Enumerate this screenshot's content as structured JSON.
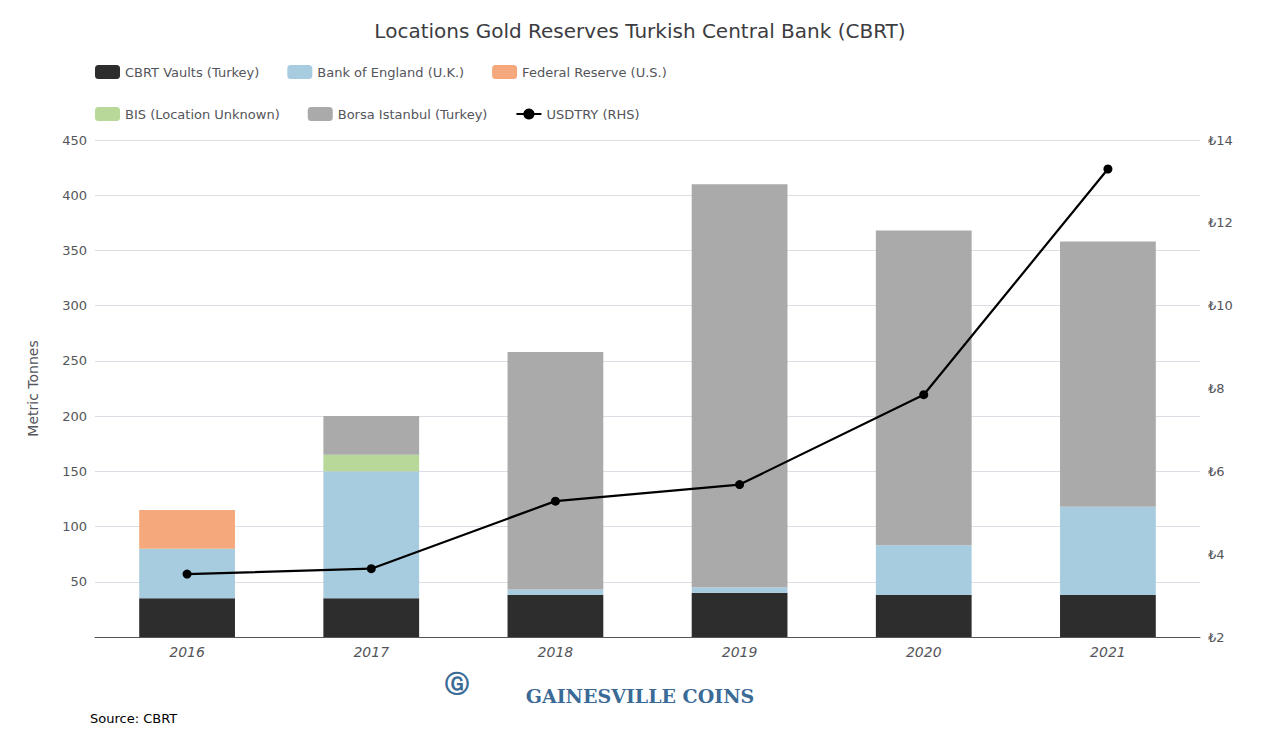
{
  "chart_data": {
    "type": "bar",
    "title": "Locations Gold Reserves Turkish Central Bank (CBRT)",
    "ylabel": "Metric Tonnes",
    "categories": [
      "2016",
      "2017",
      "2018",
      "2019",
      "2020",
      "2021"
    ],
    "stacked": true,
    "grid": true,
    "legend": "upper left",
    "series": [
      {
        "name": "CBRT Vaults (Turkey)",
        "color": "#2d2d2d",
        "values": [
          35,
          35,
          38,
          40,
          38,
          38
        ]
      },
      {
        "name": "Bank of England (U.K.)",
        "color": "#a8ccdf",
        "values": [
          45,
          115,
          5,
          5,
          45,
          80
        ]
      },
      {
        "name": "Federal Reserve (U.S.)",
        "color": "#f4a87b",
        "values": [
          35,
          0,
          0,
          0,
          0,
          0
        ]
      },
      {
        "name": "BIS (Location Unknown)",
        "color": "#b8d89a",
        "values": [
          0,
          15,
          0,
          0,
          0,
          0
        ]
      },
      {
        "name": "Borsa Istanbul (Turkey)",
        "color": "#aaaaaa",
        "values": [
          0,
          35,
          215,
          365,
          285,
          240
        ]
      },
      {
        "name": "USDTRY (RHS)",
        "type": "line",
        "axis": "y2",
        "color": "black",
        "marker": "circle",
        "values": [
          3.52,
          3.65,
          5.28,
          5.68,
          7.85,
          13.3
        ]
      }
    ],
    "ylim": [
      0,
      450
    ],
    "yticks": [
      {
        "value": 0,
        "label": ""
      },
      50,
      100,
      150,
      200,
      250,
      300,
      350,
      400,
      450
    ],
    "y2lim": [
      2,
      14
    ],
    "y2ticks": [
      {
        "value": 2,
        "label": "₺2"
      },
      {
        "value": 4,
        "label": "₺4"
      },
      {
        "value": 6,
        "label": "₺6"
      },
      {
        "value": 8,
        "label": "₺8"
      },
      {
        "value": 10,
        "label": "₺10"
      },
      {
        "value": 12,
        "label": "₺12"
      },
      {
        "value": 14,
        "label": "₺14"
      }
    ],
    "annotations": [
      {
        "text": "Ⓖ",
        "color": "#3a6b96"
      },
      {
        "text": "GAINESVILLE COINS",
        "color": "#3a6b96"
      },
      {
        "text": "Source: CBRT",
        "color": "black"
      }
    ]
  }
}
